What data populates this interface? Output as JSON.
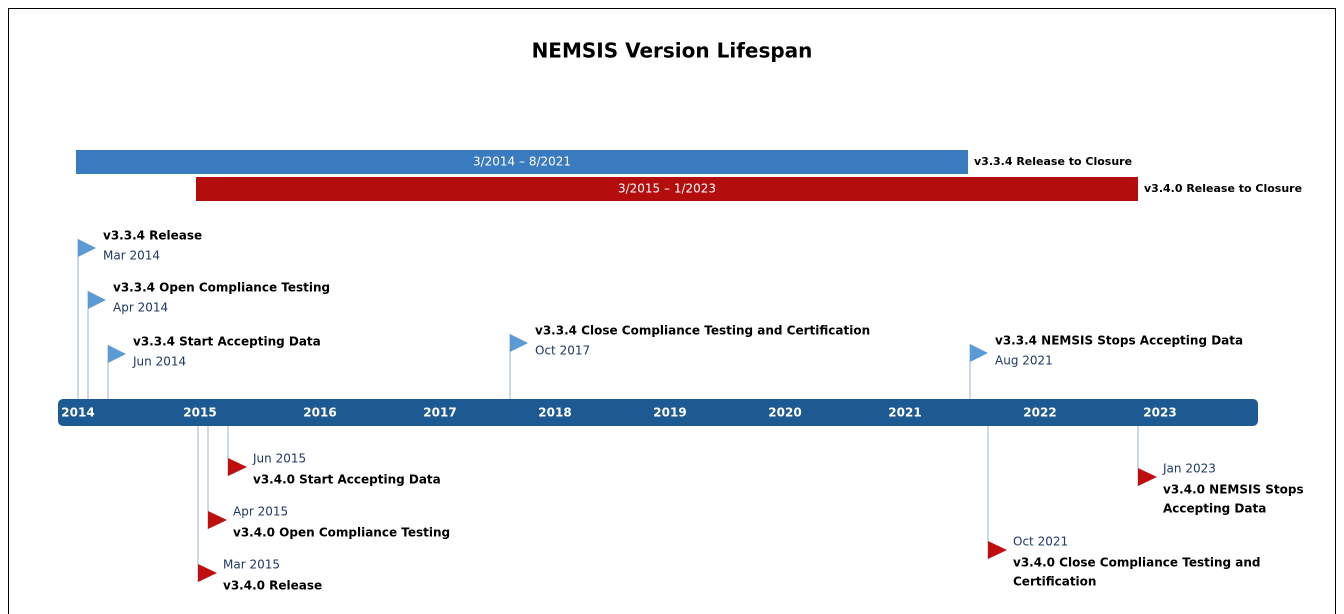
{
  "title": "NEMSIS Version Lifespan",
  "spans": [
    {
      "range": "3/2014 – 8/2021",
      "label": "v3.3.4 Release to Closure"
    },
    {
      "range": "3/2015 – 1/2023",
      "label": "v3.4.0 Release to Closure"
    }
  ],
  "years": [
    "2014",
    "2015",
    "2016",
    "2017",
    "2018",
    "2019",
    "2020",
    "2021",
    "2022",
    "2023"
  ],
  "milestones_above": [
    {
      "title": [
        "v3.3.4 Release"
      ],
      "date": "Mar 2014"
    },
    {
      "title": [
        "v3.3.4 Open Compliance Testing"
      ],
      "date": "Apr 2014"
    },
    {
      "title": [
        "v3.3.4 Start Accepting Data"
      ],
      "date": "Jun 2014"
    },
    {
      "title": [
        "v3.3.4 Close Compliance Testing and Certification"
      ],
      "date": "Oct 2017"
    },
    {
      "title": [
        "v3.3.4 NEMSIS Stops Accepting Data"
      ],
      "date": "Aug 2021"
    }
  ],
  "milestones_below": [
    {
      "title": [
        "v3.4.0 Start Accepting Data"
      ],
      "date": "Jun 2015"
    },
    {
      "title": [
        "v3.4.0 Open Compliance Testing"
      ],
      "date": "Apr 2015"
    },
    {
      "title": [
        "v3.4.0 Release"
      ],
      "date": "Mar 2015"
    },
    {
      "title": [
        "v3.4.0 Close Compliance Testing and",
        "Certification"
      ],
      "date": "Oct 2021"
    },
    {
      "title": [
        "v3.4.0 NEMSIS Stops",
        "Accepting Data"
      ],
      "date": "Jan 2023"
    }
  ]
}
